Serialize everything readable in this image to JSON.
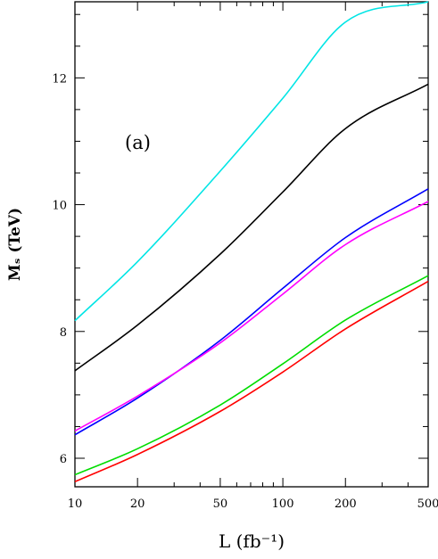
{
  "chart_data": {
    "type": "line",
    "panel_label": "(a)",
    "xlabel": "L (fb⁻¹)",
    "ylabel": "Mₛ  (TeV)",
    "xscale": "log",
    "xlim": [
      10,
      500
    ],
    "ylim": [
      5.55,
      13.2
    ],
    "xticks": [
      10,
      20,
      50,
      100,
      200,
      500
    ],
    "xtick_labels": [
      "10",
      "20",
      "50",
      "100",
      "200",
      "500"
    ],
    "yticks": [
      6,
      8,
      10,
      12
    ],
    "ytick_labels": [
      "6",
      "8",
      "10",
      "12"
    ],
    "grid": false,
    "legend": "none",
    "x": [
      10,
      20,
      50,
      100,
      200,
      500
    ],
    "series": [
      {
        "color": "#00e5e5",
        "values": [
          8.17,
          9.1,
          10.53,
          11.68,
          12.88,
          13.2
        ]
      },
      {
        "color": "#000000",
        "values": [
          7.38,
          8.1,
          9.22,
          10.2,
          11.2,
          11.9
        ]
      },
      {
        "color": "#0000ff",
        "values": [
          6.37,
          6.95,
          7.86,
          8.68,
          9.48,
          10.25
        ]
      },
      {
        "color": "#ff00ff",
        "values": [
          6.43,
          6.98,
          7.82,
          8.59,
          9.37,
          10.05
        ]
      },
      {
        "color": "#00dd00",
        "values": [
          5.74,
          6.15,
          6.84,
          7.49,
          8.18,
          8.88
        ]
      },
      {
        "color": "#ff0000",
        "values": [
          5.63,
          6.06,
          6.74,
          7.36,
          8.04,
          8.79
        ]
      }
    ]
  }
}
